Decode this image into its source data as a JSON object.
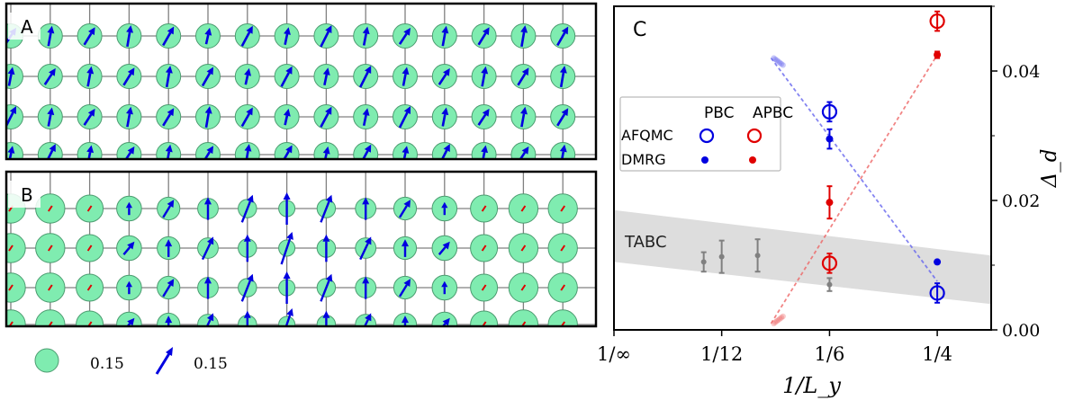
{
  "lattice_panels": {
    "panel_a": {
      "label": "A",
      "mode": "spin",
      "rows": 4,
      "cols": 15
    },
    "panel_b": {
      "label": "B",
      "mode": "stripe",
      "rows": 4,
      "cols": 15
    },
    "scale_legend": {
      "circle_value": "0.15",
      "arrow_value": "0.15"
    },
    "colors": {
      "circle_fill": "#7fecb0",
      "arrow_major": "#0000e0",
      "arrow_minor": "#e00000",
      "grid": "#808080"
    }
  },
  "chart_data": {
    "type": "scatter",
    "panel_label": "C",
    "xlabel": "1/L_y",
    "ylabel": "Δ_d",
    "x_ticks": [
      "1/∞",
      "1/12",
      "1/6",
      "1/4"
    ],
    "x_tick_values": [
      0,
      0.0833,
      0.1667,
      0.25
    ],
    "xlim": [
      0,
      0.2917
    ],
    "y_ticks": [
      "0.00",
      "0.02",
      "0.04"
    ],
    "y_tick_values": [
      0.0,
      0.02,
      0.04
    ],
    "ylim": [
      0.0,
      0.05
    ],
    "y_axis_side": "right",
    "tabc_label": "TABC",
    "tabc_band": {
      "x": [
        0,
        0.2917
      ],
      "low": [
        0.0105,
        0.004
      ],
      "high": [
        0.0185,
        0.0115
      ]
    },
    "legend": {
      "col_headers": [
        "PBC",
        "APBC"
      ],
      "row_labels": [
        "AFQMC",
        "DMRG"
      ],
      "position": "upper-left"
    },
    "series": [
      {
        "name": "AFQMC PBC",
        "marker": "open-circle",
        "color": "#0000e0",
        "points": [
          {
            "x": 0.1667,
            "y": 0.0337,
            "err": 0.0015
          },
          {
            "x": 0.25,
            "y": 0.0057,
            "err": 0.0015
          }
        ]
      },
      {
        "name": "AFQMC APBC",
        "marker": "open-circle",
        "color": "#e00000",
        "points": [
          {
            "x": 0.1667,
            "y": 0.0103,
            "err": 0.0015
          },
          {
            "x": 0.25,
            "y": 0.0477,
            "err": 0.0015
          }
        ]
      },
      {
        "name": "DMRG PBC",
        "marker": "dot",
        "color": "#0000e0",
        "points": [
          {
            "x": 0.1667,
            "y": 0.0295,
            "err": 0.0015
          },
          {
            "x": 0.25,
            "y": 0.0105,
            "err": 0
          }
        ]
      },
      {
        "name": "DMRG APBC",
        "marker": "dot",
        "color": "#e00000",
        "points": [
          {
            "x": 0.1667,
            "y": 0.0197,
            "err": 0.0025
          },
          {
            "x": 0.25,
            "y": 0.0425,
            "err": 0.0005
          }
        ]
      },
      {
        "name": "TABC",
        "marker": "dot",
        "color": "#808080",
        "points": [
          {
            "x": 0.0694,
            "y": 0.0105,
            "err": 0.0015
          },
          {
            "x": 0.0833,
            "y": 0.0113,
            "err": 0.0025
          },
          {
            "x": 0.1111,
            "y": 0.0115,
            "err": 0.0025
          },
          {
            "x": 0.1667,
            "y": 0.007,
            "err": 0.001
          }
        ]
      }
    ],
    "extrapolation": [
      {
        "color": "#6666ee",
        "x": [
          0.1215,
          0.25
        ],
        "y": [
          0.042,
          0.0075
        ]
      },
      {
        "color": "#ee6666",
        "x": [
          0.1215,
          0.25
        ],
        "y": [
          0.001,
          0.0425
        ]
      }
    ]
  }
}
